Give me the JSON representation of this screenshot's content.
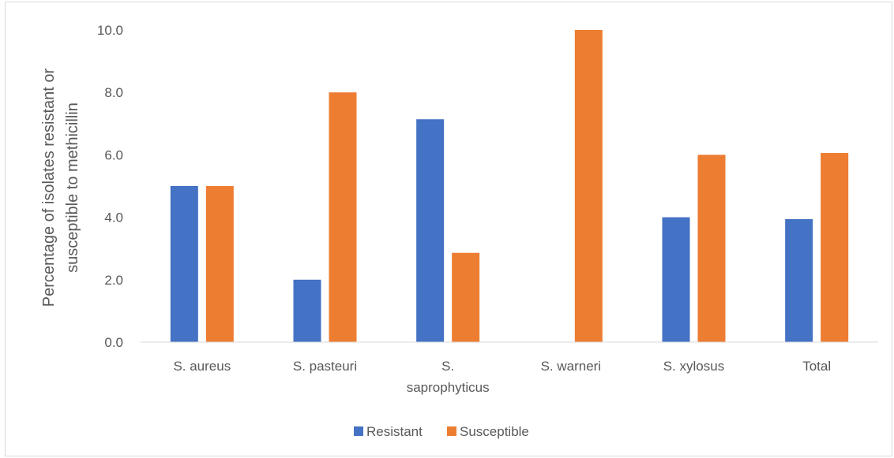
{
  "chart_data": {
    "type": "bar",
    "title": "",
    "ylabel": "Percentage of isolates resistant or susceptible to methicillin",
    "ylabel_lines": [
      "Percentage of isolates resistant or",
      "susceptible to methicillin"
    ],
    "xlabel": "",
    "categories": [
      "S. aureus",
      "S. pasteuri",
      "S. saprophyticus",
      "S. warneri",
      "S. xylosus",
      "Total"
    ],
    "category_lines": [
      [
        "S. aureus"
      ],
      [
        "S. pasteuri"
      ],
      [
        "S.",
        "saprophyticus"
      ],
      [
        "S. warneri"
      ],
      [
        "S. xylosus"
      ],
      [
        "Total"
      ]
    ],
    "series": [
      {
        "name": "Resistant",
        "color": "#4472C4",
        "values": [
          5.0,
          2.0,
          7.14,
          0.0,
          4.0,
          3.94
        ]
      },
      {
        "name": "Susceptible",
        "color": "#ED7D31",
        "values": [
          5.0,
          8.0,
          2.86,
          10.0,
          6.0,
          6.06
        ]
      }
    ],
    "ylim": [
      0,
      10
    ],
    "yticks": [
      0,
      2,
      4,
      6,
      8,
      10
    ],
    "ytick_labels": [
      "0.0",
      "2.0",
      "4.0",
      "6.0",
      "8.0",
      "10.0"
    ],
    "grid": false,
    "legend_position": "bottom"
  }
}
